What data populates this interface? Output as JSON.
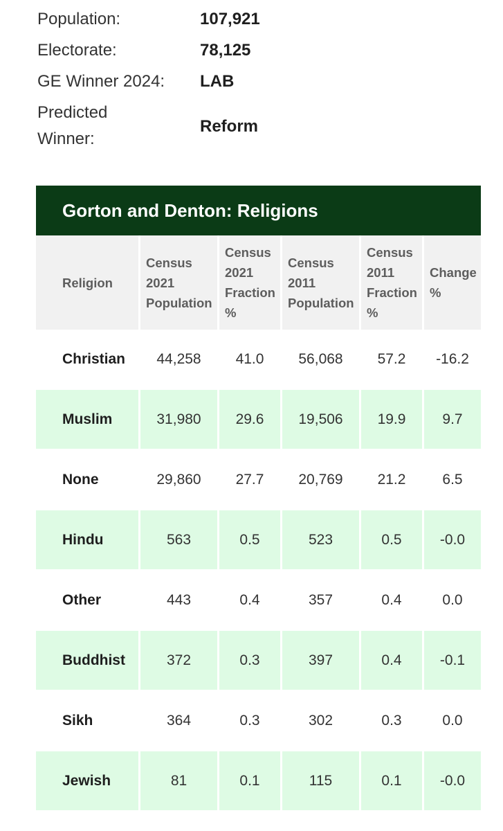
{
  "summary": [
    {
      "label": "Population:",
      "value": "107,921"
    },
    {
      "label": "Electorate:",
      "value": "78,125"
    },
    {
      "label": "GE Winner 2024:",
      "value": "LAB"
    },
    {
      "label": "Predicted Winner:",
      "value": "Reform"
    }
  ],
  "table": {
    "title": "Gorton and Denton: Religions",
    "headers": [
      "Religion",
      "Census 2021 Population",
      "Census 2021 Fraction %",
      "Census 2011 Population",
      "Census 2011 Fraction %",
      "Change %"
    ],
    "rows": [
      {
        "name": "Christian",
        "c2021": "44,258",
        "f2021": "41.0",
        "c2011": "56,068",
        "f2011": "57.2",
        "change": "-16.2"
      },
      {
        "name": "Muslim",
        "c2021": "31,980",
        "f2021": "29.6",
        "c2011": "19,506",
        "f2011": "19.9",
        "change": "9.7"
      },
      {
        "name": "None",
        "c2021": "29,860",
        "f2021": "27.7",
        "c2011": "20,769",
        "f2011": "21.2",
        "change": "6.5"
      },
      {
        "name": "Hindu",
        "c2021": "563",
        "f2021": "0.5",
        "c2011": "523",
        "f2011": "0.5",
        "change": "-0.0"
      },
      {
        "name": "Other",
        "c2021": "443",
        "f2021": "0.4",
        "c2011": "357",
        "f2011": "0.4",
        "change": "0.0"
      },
      {
        "name": "Buddhist",
        "c2021": "372",
        "f2021": "0.3",
        "c2011": "397",
        "f2011": "0.4",
        "change": "-0.1"
      },
      {
        "name": "Sikh",
        "c2021": "364",
        "f2021": "0.3",
        "c2011": "302",
        "f2011": "0.3",
        "change": "0.0"
      },
      {
        "name": "Jewish",
        "c2021": "81",
        "f2021": "0.1",
        "c2011": "115",
        "f2011": "0.1",
        "change": "-0.0"
      }
    ]
  },
  "colors": {
    "title_bar": "#0b3b16",
    "alt_row": "#defbe4",
    "header_bg": "#f1f1f1"
  }
}
